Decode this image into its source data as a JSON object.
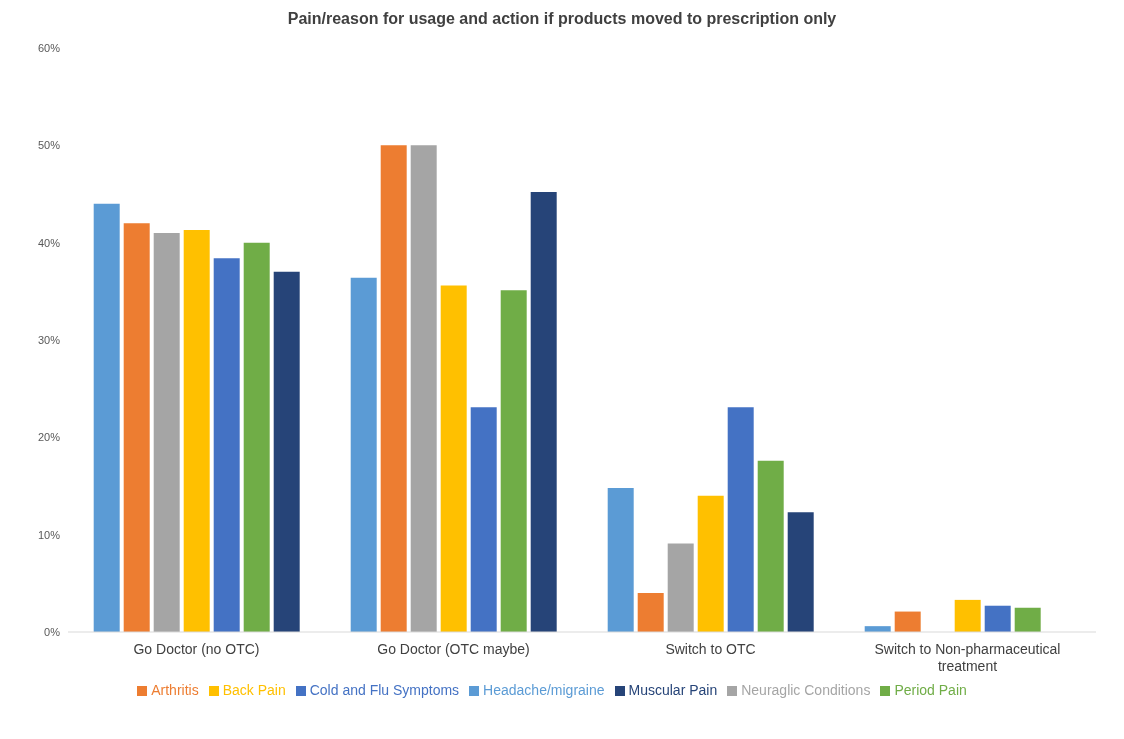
{
  "chart_data": {
    "type": "bar",
    "title": "Pain/reason for usage and action if products moved to prescription only",
    "categories": [
      "Go Doctor (no OTC)",
      "Go Doctor (OTC maybe)",
      "Switch to OTC",
      "Switch to Non-pharmaceutical treatment"
    ],
    "series": [
      {
        "name": "Headache/migraine",
        "color": "#5b9bd5",
        "values": [
          44,
          36.4,
          14.8,
          0.6
        ]
      },
      {
        "name": "Arthritis",
        "color": "#ed7d31",
        "values": [
          42,
          50,
          4,
          2.1
        ]
      },
      {
        "name": "Neuraglic Conditions",
        "color": "#a5a5a5",
        "values": [
          41,
          50,
          9.1,
          0
        ]
      },
      {
        "name": "Back Pain",
        "color": "#ffc000",
        "values": [
          41.3,
          35.6,
          14,
          3.3
        ]
      },
      {
        "name": "Cold and Flu Symptoms",
        "color": "#4472c4",
        "values": [
          38.4,
          23.1,
          23.1,
          2.7
        ]
      },
      {
        "name": "Period Pain",
        "color": "#70ad47",
        "values": [
          40,
          35.1,
          17.6,
          2.5
        ]
      },
      {
        "name": "Muscular Pain",
        "color": "#264478",
        "values": [
          37,
          45.2,
          12.3,
          0
        ]
      }
    ],
    "ylim": [
      0,
      60
    ],
    "yticks": [
      {
        "value": 0,
        "label": "0%"
      },
      {
        "value": 10,
        "label": "10%"
      },
      {
        "value": 20,
        "label": "20%"
      },
      {
        "value": 30,
        "label": "30%"
      },
      {
        "value": 40,
        "label": "40%"
      },
      {
        "value": 50,
        "label": "50%"
      },
      {
        "value": 60,
        "label": "60%"
      }
    ],
    "grid": false,
    "legend": "bottom"
  }
}
